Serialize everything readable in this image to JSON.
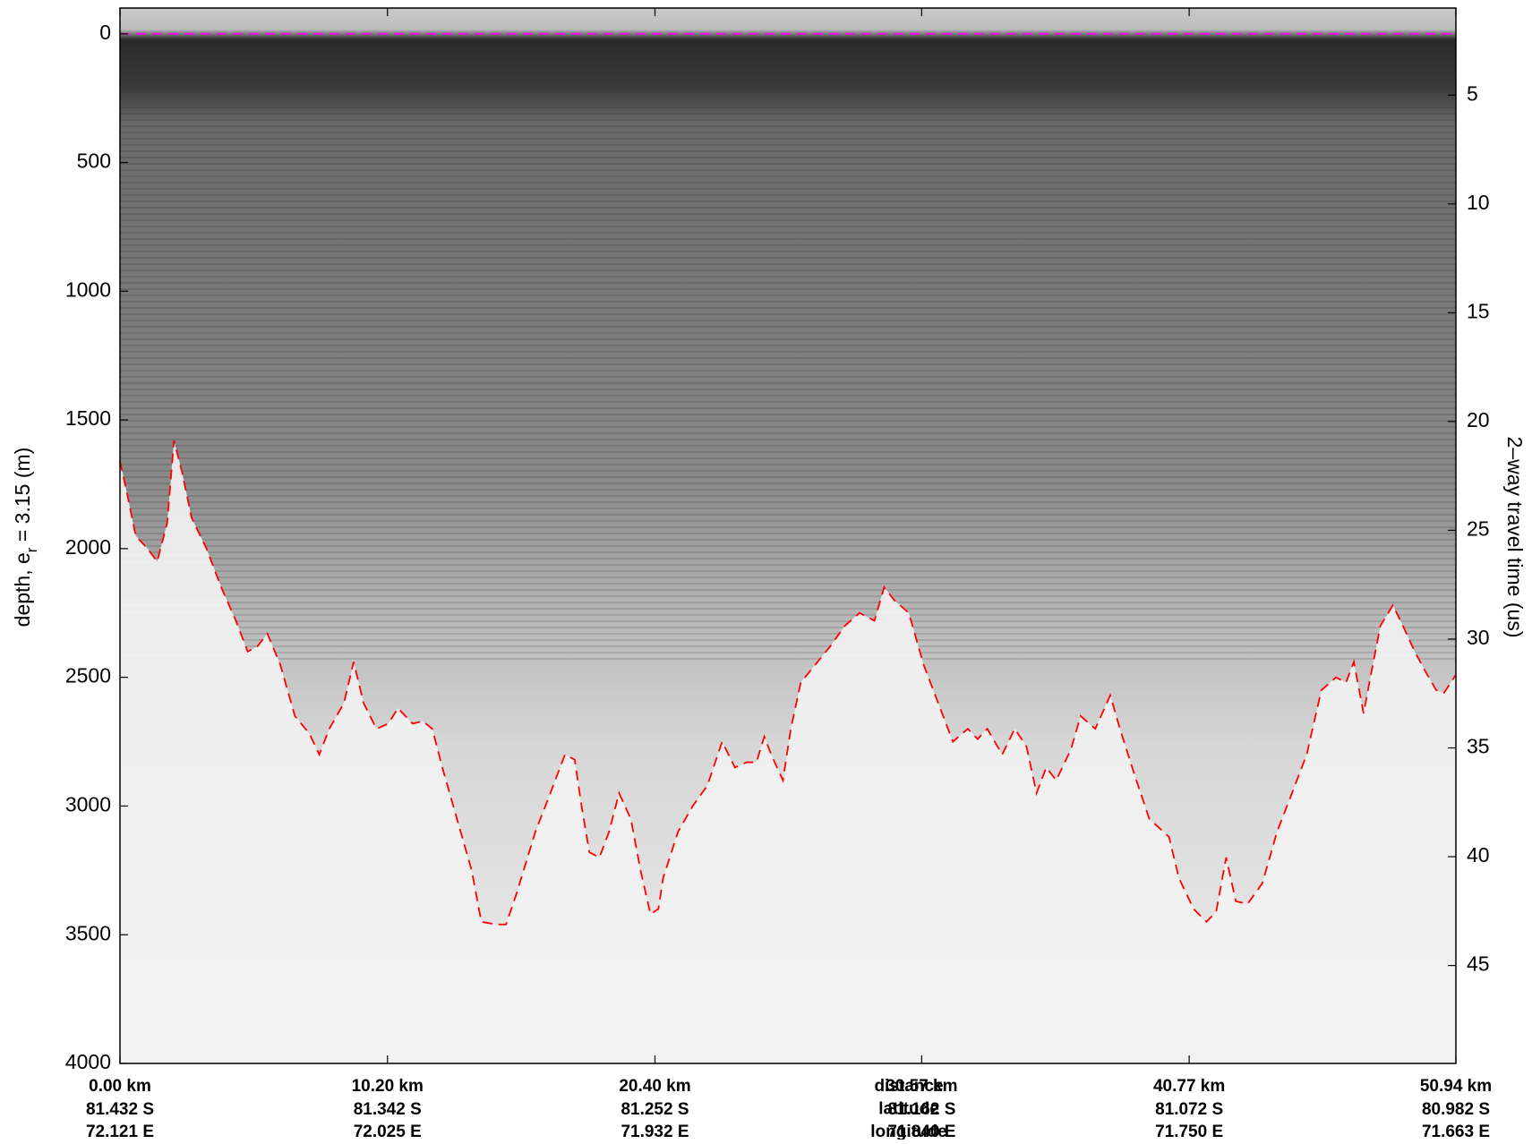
{
  "chart_data": {
    "type": "line",
    "ylabel_parts": [
      "depth, e",
      "r",
      " = 3.15 (m)"
    ],
    "y2label": "2–way travel time (us)",
    "xlim": [
      0,
      50.94
    ],
    "ylim": [
      4000,
      -100
    ],
    "yticks": [
      0,
      500,
      1000,
      1500,
      2000,
      2500,
      3000,
      3500,
      4000
    ],
    "y2lim": [
      49.5,
      1.0
    ],
    "y2ticks": [
      5,
      10,
      15,
      20,
      25,
      30,
      35,
      40,
      45
    ],
    "xticks": [
      {
        "value": 0,
        "label": "0.00 km"
      },
      {
        "value": 10.2,
        "label": "10.20 km"
      },
      {
        "value": 20.4,
        "label": "20.40 km"
      },
      {
        "value": 30.57,
        "label": "30.57 km"
      },
      {
        "value": 40.77,
        "label": "40.77 km"
      },
      {
        "value": 50.94,
        "label": "50.94 km"
      }
    ],
    "latitude_labels": [
      "81.432 S",
      "81.342 S",
      "81.252 S",
      "81.162 S",
      "81.072 S",
      "80.982 S"
    ],
    "longitude_labels": [
      "72.121 E",
      "72.025 E",
      "71.932 E",
      "71.840 E",
      "71.750 E",
      "71.663 E"
    ],
    "row_labels": [
      "distance",
      "latitude",
      "longitude"
    ],
    "series": [
      {
        "color": "#ff00ff",
        "x": [
          0,
          50.94
        ],
        "values": [
          0,
          0
        ]
      },
      {
        "color": "#ff0000",
        "x": [
          0,
          0.3,
          0.6,
          1.05,
          1.42,
          1.8,
          2.06,
          2.36,
          2.73,
          3.3,
          3.86,
          4.42,
          4.87,
          5.24,
          5.62,
          6.11,
          6.67,
          7.23,
          7.6,
          7.98,
          8.54,
          8.91,
          9.29,
          9.78,
          10.23,
          10.6,
          11.16,
          11.54,
          11.91,
          12.29,
          12.85,
          13.41,
          13.78,
          14.35,
          14.72,
          15.09,
          15.84,
          16.41,
          16.97,
          17.34,
          17.6,
          17.9,
          18.28,
          18.65,
          19.03,
          19.48,
          19.85,
          20.23,
          20.53,
          20.71,
          21.28,
          21.84,
          22.4,
          22.96,
          23.45,
          23.9,
          24.27,
          24.57,
          24.83,
          25.28,
          25.58,
          25.96,
          26.52,
          27.08,
          27.64,
          28.2,
          28.77,
          29.14,
          29.52,
          30.08,
          30.64,
          31.2,
          31.76,
          32.33,
          32.7,
          33.07,
          33.64,
          34.12,
          34.57,
          34.95,
          35.32,
          35.7,
          36.26,
          36.63,
          37.19,
          37.76,
          38.13,
          38.69,
          39.25,
          40.0,
          40.38,
          40.94,
          41.43,
          41.8,
          42.18,
          42.55,
          43.0,
          43.56,
          44.12,
          44.69,
          45.25,
          45.81,
          46.37,
          46.75,
          47.05,
          47.42,
          47.68,
          48.06,
          48.54,
          48.92,
          49.37,
          49.74,
          50.19,
          50.49,
          50.94
        ],
        "values": [
          1660,
          1800,
          1950,
          2000,
          2050,
          1900,
          1580,
          1700,
          1880,
          2000,
          2150,
          2280,
          2400,
          2380,
          2330,
          2450,
          2650,
          2720,
          2800,
          2700,
          2600,
          2440,
          2600,
          2700,
          2680,
          2620,
          2680,
          2670,
          2700,
          2850,
          3050,
          3250,
          3450,
          3460,
          3460,
          3350,
          3100,
          2950,
          2800,
          2820,
          3000,
          3180,
          3200,
          3100,
          2950,
          3050,
          3250,
          3420,
          3400,
          3280,
          3100,
          3000,
          2920,
          2750,
          2850,
          2830,
          2830,
          2730,
          2800,
          2900,
          2700,
          2520,
          2450,
          2380,
          2300,
          2250,
          2280,
          2150,
          2200,
          2250,
          2450,
          2600,
          2750,
          2700,
          2740,
          2700,
          2800,
          2700,
          2770,
          2950,
          2850,
          2900,
          2780,
          2650,
          2700,
          2570,
          2700,
          2880,
          3050,
          3120,
          3280,
          3400,
          3450,
          3410,
          3200,
          3370,
          3380,
          3300,
          3100,
          2950,
          2800,
          2550,
          2500,
          2520,
          2440,
          2640,
          2500,
          2300,
          2220,
          2300,
          2400,
          2470,
          2550,
          2560,
          2490
        ]
      }
    ]
  }
}
